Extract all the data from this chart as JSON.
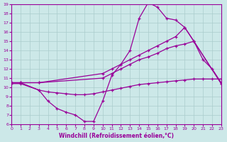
{
  "xlabel": "Windchill (Refroidissement éolien,°C)",
  "xlim": [
    0,
    23
  ],
  "ylim": [
    6,
    19
  ],
  "xticks": [
    0,
    1,
    2,
    3,
    4,
    5,
    6,
    7,
    8,
    9,
    10,
    11,
    12,
    13,
    14,
    15,
    16,
    17,
    18,
    19,
    20,
    21,
    22,
    23
  ],
  "yticks": [
    6,
    7,
    8,
    9,
    10,
    11,
    12,
    13,
    14,
    15,
    16,
    17,
    18,
    19
  ],
  "bg_color": "#cce8e8",
  "line_color": "#990099",
  "grid_color": "#aacccc",
  "line1_x": [
    0,
    1,
    3,
    4,
    5,
    6,
    7,
    8,
    9,
    10,
    11,
    12,
    13,
    14,
    15,
    16,
    17,
    18,
    19,
    20,
    23
  ],
  "line1_y": [
    10.5,
    10.5,
    9.7,
    8.5,
    7.7,
    7.3,
    7.0,
    6.3,
    6.3,
    8.5,
    11.3,
    12.5,
    14.0,
    17.5,
    19.2,
    18.7,
    17.5,
    17.3,
    16.5,
    15.0,
    10.4
  ],
  "line2_x": [
    0,
    1,
    3,
    10,
    11,
    12,
    13,
    14,
    15,
    16,
    17,
    18,
    19,
    20,
    21,
    22,
    23
  ],
  "line2_y": [
    10.5,
    10.5,
    10.5,
    11.5,
    12.0,
    12.5,
    13.0,
    13.5,
    14.0,
    14.5,
    15.0,
    15.5,
    16.5,
    15.0,
    13.0,
    12.0,
    10.5
  ],
  "line3_x": [
    0,
    1,
    3,
    10,
    11,
    12,
    13,
    14,
    15,
    16,
    17,
    18,
    19,
    20,
    23
  ],
  "line3_y": [
    10.5,
    10.5,
    10.5,
    11.0,
    11.5,
    12.0,
    12.5,
    13.0,
    13.3,
    13.7,
    14.2,
    14.5,
    14.7,
    15.0,
    10.4
  ],
  "line4_x": [
    0,
    1,
    3,
    4,
    5,
    6,
    7,
    8,
    9,
    10,
    11,
    12,
    13,
    14,
    15,
    16,
    17,
    18,
    19,
    20,
    21,
    22,
    23
  ],
  "line4_y": [
    10.4,
    10.4,
    9.7,
    9.5,
    9.4,
    9.3,
    9.2,
    9.2,
    9.3,
    9.5,
    9.7,
    9.9,
    10.1,
    10.3,
    10.4,
    10.5,
    10.6,
    10.7,
    10.8,
    10.9,
    10.9,
    10.9,
    10.9
  ]
}
